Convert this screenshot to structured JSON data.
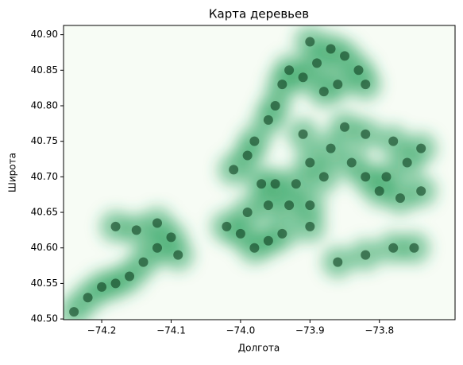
{
  "chart_data": {
    "type": "scatter",
    "title": "Карта деревьев",
    "xlabel": "Долгота",
    "ylabel": "Широта",
    "xlim": [
      -74.255,
      -73.691
    ],
    "ylim": [
      40.499,
      40.913
    ],
    "xticks": [
      {
        "value": -74.2,
        "label": "−74.2"
      },
      {
        "value": -74.1,
        "label": "−74.1"
      },
      {
        "value": -74.0,
        "label": "−74.0"
      },
      {
        "value": -73.9,
        "label": "−73.9"
      },
      {
        "value": -73.8,
        "label": "−73.8"
      }
    ],
    "yticks": [
      {
        "value": 40.5,
        "label": "40.50"
      },
      40.55,
      {
        "value": 40.6,
        "label": "40.60"
      },
      40.65,
      {
        "value": 40.7,
        "label": "40.70"
      },
      40.75,
      {
        "value": 40.8,
        "label": "40.80"
      },
      40.85,
      {
        "value": 40.9,
        "label": "40.90"
      }
    ],
    "background_color": "#f7fcf5",
    "glow_color": "#2ca25f",
    "color": "#0b3d1e",
    "x": [
      -74.24,
      -74.22,
      -74.2,
      -74.18,
      -74.16,
      -74.14,
      -74.12,
      -74.1,
      -74.15,
      -74.18,
      -74.12,
      -74.09,
      -74.02,
      -74.0,
      -73.98,
      -73.96,
      -73.94,
      -73.99,
      -73.96,
      -73.93,
      -73.9,
      -73.95,
      -73.92,
      -73.97,
      -73.9,
      -73.9,
      -73.87,
      -73.84,
      -73.82,
      -73.79,
      -73.76,
      -73.74,
      -73.78,
      -73.82,
      -73.85,
      -73.8,
      -73.77,
      -73.74,
      -73.88,
      -73.91,
      -74.01,
      -73.99,
      -73.98,
      -73.96,
      -73.95,
      -73.94,
      -73.93,
      -73.91,
      -73.89,
      -73.87,
      -73.85,
      -73.83,
      -73.82,
      -73.86,
      -73.88,
      -73.9,
      -73.86,
      -73.82,
      -73.78,
      -73.75
    ],
    "y": [
      40.51,
      40.53,
      40.545,
      40.55,
      40.56,
      40.58,
      40.6,
      40.615,
      40.625,
      40.63,
      40.635,
      40.59,
      40.63,
      40.62,
      40.6,
      40.61,
      40.62,
      40.65,
      40.66,
      40.66,
      40.66,
      40.69,
      40.69,
      40.69,
      40.63,
      40.72,
      40.74,
      40.72,
      40.7,
      40.7,
      40.72,
      40.74,
      40.75,
      40.76,
      40.77,
      40.68,
      40.67,
      40.68,
      40.7,
      40.76,
      40.71,
      40.73,
      40.75,
      40.78,
      40.8,
      40.83,
      40.85,
      40.84,
      40.86,
      40.88,
      40.87,
      40.85,
      40.83,
      40.83,
      40.82,
      40.89,
      40.58,
      40.59,
      40.6,
      40.6
    ]
  }
}
